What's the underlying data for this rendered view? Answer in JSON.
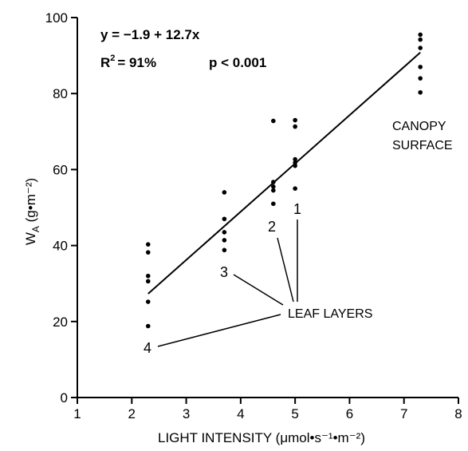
{
  "chart_data": {
    "type": "scatter",
    "xlabel": "LIGHT INTENSITY (μmol•s⁻¹•m⁻²)",
    "ylabel": "W",
    "ylabel_sub": "A",
    "ylabel_unit": " (g•m⁻²)",
    "xlim": [
      1,
      8
    ],
    "ylim": [
      0,
      100
    ],
    "x_ticks": [
      1,
      2,
      3,
      4,
      5,
      6,
      7,
      8
    ],
    "y_ticks": [
      0,
      20,
      40,
      60,
      80,
      100
    ],
    "grid": false,
    "points": [
      {
        "x": 2.3,
        "y": 40.3
      },
      {
        "x": 2.3,
        "y": 38.2
      },
      {
        "x": 2.3,
        "y": 32.0
      },
      {
        "x": 2.3,
        "y": 30.6
      },
      {
        "x": 2.3,
        "y": 25.2
      },
      {
        "x": 2.3,
        "y": 18.8
      },
      {
        "x": 3.7,
        "y": 54.0
      },
      {
        "x": 3.7,
        "y": 47.0
      },
      {
        "x": 3.7,
        "y": 43.5
      },
      {
        "x": 3.7,
        "y": 41.4
      },
      {
        "x": 3.7,
        "y": 38.8
      },
      {
        "x": 4.6,
        "y": 72.8
      },
      {
        "x": 4.6,
        "y": 56.7
      },
      {
        "x": 4.6,
        "y": 55.5
      },
      {
        "x": 4.6,
        "y": 54.5
      },
      {
        "x": 4.6,
        "y": 51.0
      },
      {
        "x": 5.0,
        "y": 73.0
      },
      {
        "x": 5.0,
        "y": 71.3
      },
      {
        "x": 5.0,
        "y": 62.7
      },
      {
        "x": 5.0,
        "y": 61.8
      },
      {
        "x": 5.0,
        "y": 61.0
      },
      {
        "x": 5.0,
        "y": 55.0
      },
      {
        "x": 7.3,
        "y": 95.5
      },
      {
        "x": 7.3,
        "y": 94.2
      },
      {
        "x": 7.3,
        "y": 92.0
      },
      {
        "x": 7.3,
        "y": 87.0
      },
      {
        "x": 7.3,
        "y": 84.0
      },
      {
        "x": 7.3,
        "y": 80.3
      }
    ],
    "regression": {
      "intercept": -1.9,
      "slope": 12.7,
      "x_range": [
        2.3,
        7.3
      ]
    },
    "equation_text": "y = −1.9 + 12.7x",
    "r2_label": "R",
    "r2_sup": "2",
    "r2_value": "= 91%",
    "p_text": "p < 0.001",
    "annotations": {
      "canopy_line1": "CANOPY",
      "canopy_line2": "SURFACE",
      "leaf_layers": "LEAF LAYERS",
      "layer_1": "1",
      "layer_2": "2",
      "layer_3": "3",
      "layer_4": "4"
    }
  }
}
